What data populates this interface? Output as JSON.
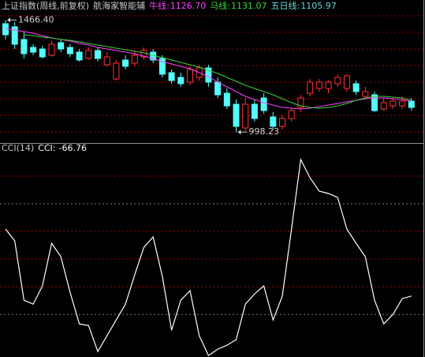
{
  "chart_data": [
    {
      "type": "candlestick",
      "title": "上证指数(周线,前复权)",
      "subtitle": "航海家智能辅",
      "open": [
        1451,
        1437.8,
        1385,
        1352,
        1345.4,
        1319,
        1371.8,
        1352,
        1332.2,
        1305.8,
        1338.8,
        1279.4,
        1220,
        1299.2,
        1286,
        1312.4,
        1332.2,
        1305.8,
        1246.4,
        1226.6,
        1206.8,
        1226.6,
        1266.2,
        1206.8,
        1160.6,
        1114.4,
        1015.4,
        1114.4,
        1140.8,
        1061.6,
        1022,
        1055,
        1101.2,
        1160.6,
        1180.4,
        1180.4,
        1200.2,
        1180.4,
        1200.2,
        1147.4,
        1154,
        1094.6,
        1107.8,
        1107.8,
        1127.6
      ],
      "high": [
        1466.4,
        1457.6,
        1418,
        1365.2,
        1358.6,
        1378.4,
        1385,
        1365.2,
        1345.4,
        1352,
        1352,
        1332.2,
        1299.2,
        1319,
        1338.8,
        1352,
        1345.4,
        1319,
        1259.6,
        1246.4,
        1272.8,
        1279.4,
        1279.4,
        1226.6,
        1180.4,
        1134.2,
        1140.8,
        1134.2,
        1160.6,
        1081.4,
        1068.2,
        1101.2,
        1154,
        1220,
        1220,
        1213.4,
        1239.8,
        1239.8,
        1213.4,
        1187,
        1167.2,
        1140.8,
        1140.8,
        1147.4,
        1140.8
      ],
      "low": [
        1385,
        1345.4,
        1305.8,
        1319,
        1305.8,
        1312.4,
        1332.2,
        1312.4,
        1292.6,
        1299.2,
        1292.6,
        1272.8,
        1213.4,
        1259.6,
        1272.8,
        1299.2,
        1286,
        1226.6,
        1200.2,
        1187,
        1193.6,
        1213.4,
        1187,
        1140.8,
        1094.6,
        998.23,
        1002.2,
        1041.8,
        1074.8,
        1008.8,
        1008.8,
        1041.8,
        1081.4,
        1147.4,
        1167.2,
        1160.6,
        1187,
        1167.2,
        1154,
        1134.2,
        1081.4,
        1088,
        1094.6,
        1094.6,
        1088
      ],
      "close": [
        1404.8,
        1365.2,
        1325.6,
        1332.2,
        1312.4,
        1365.2,
        1345.4,
        1325.6,
        1299.2,
        1338.8,
        1305.8,
        1312.4,
        1286,
        1272.8,
        1319,
        1338.8,
        1299.2,
        1239.8,
        1213.4,
        1200.2,
        1259.6,
        1266.2,
        1206.8,
        1154,
        1107.8,
        1022,
        1114.4,
        1055,
        1088,
        1022,
        1055,
        1088,
        1140.8,
        1206.8,
        1206.8,
        1206.8,
        1226.6,
        1233.2,
        1167.2,
        1167.2,
        1088,
        1121,
        1127.6,
        1127.6,
        1101.2
      ],
      "up_color": "#ff3232",
      "down_color": "#54fcfc",
      "series": [
        {
          "name": "牛线:",
          "color": "#ff40ff",
          "values": [
            1431.2,
            1424.6,
            1418,
            1411.4,
            1401.5,
            1391.6,
            1385,
            1378.4,
            1368.5,
            1361.9,
            1352,
            1345.4,
            1338.8,
            1332.2,
            1325.6,
            1315.7,
            1305.8,
            1292.6,
            1282.7,
            1272.8,
            1262.9,
            1246.4,
            1229.9,
            1206.8,
            1187,
            1167.2,
            1147.4,
            1134.2,
            1121,
            1111.1,
            1101.2,
            1097.9,
            1094.6,
            1097.9,
            1104.5,
            1111.1,
            1117.7,
            1124.3,
            1130.9,
            1137.5,
            1140.8,
            1140.8,
            1137.5,
            1134.2,
            1126.7
          ],
          "value_labels": [
            null,
            null,
            null,
            null,
            null,
            null,
            null,
            null,
            null,
            null,
            null,
            null,
            null,
            null,
            null,
            null,
            null,
            null,
            null,
            null,
            null,
            null,
            null,
            null,
            null,
            null,
            null,
            null,
            null,
            null,
            null,
            null,
            null,
            null,
            null,
            null,
            null,
            null,
            null,
            null,
            null,
            null,
            null,
            null,
            "1126.70"
          ]
        },
        {
          "name": "马线:",
          "color": "#3cd23c",
          "values": [
            null,
            null,
            1404.8,
            1401.5,
            1394.9,
            1391.6,
            1385,
            1381.7,
            1375.1,
            1368.5,
            1361.9,
            1355.3,
            1348.7,
            1342.1,
            1335.5,
            1328.9,
            1319,
            1309.1,
            1299.2,
            1289.3,
            1279.4,
            1269.5,
            1256.3,
            1243.1,
            1226.6,
            1210.1,
            1193.6,
            1180.4,
            1167.2,
            1154,
            1137.5,
            1121,
            1107.8,
            1101.2,
            1097.9,
            1101.2,
            1107.8,
            1117.7,
            1130.9,
            1140.8,
            1147.4,
            1147.4,
            1144.1,
            1140.8,
            1131.07
          ],
          "value_labels": [
            null,
            null,
            null,
            null,
            null,
            null,
            null,
            null,
            null,
            null,
            null,
            null,
            null,
            null,
            null,
            null,
            null,
            null,
            null,
            null,
            null,
            null,
            null,
            null,
            null,
            null,
            null,
            null,
            null,
            null,
            null,
            null,
            null,
            null,
            null,
            null,
            null,
            null,
            null,
            null,
            null,
            null,
            null,
            null,
            "1131.07"
          ]
        }
      ],
      "indicator_values": [
        {
          "name": "五日线:",
          "value": 1105.97,
          "label": "1105.97",
          "color": "#6ad5d5"
        }
      ],
      "annotations": [
        {
          "label": "1466.40",
          "value": 1466.4
        },
        {
          "label": "998.23",
          "value": 998.23
        }
      ],
      "ylim": [
        956,
        1550
      ],
      "yticks": [
        1484,
        1415,
        1345,
        1276,
        1207,
        1137,
        1068,
        999
      ],
      "grid": true,
      "grid_color": "#a00000"
    },
    {
      "type": "line",
      "title": "CCI(14)",
      "series": [
        {
          "name": "CCI:",
          "color": "#ffffff",
          "values": [
            54.3,
            32.9,
            -74.3,
            -81.4,
            -48.6,
            28.6,
            4.3,
            -60,
            -117.1,
            -120,
            -167.1,
            -138.6,
            -110,
            -81.4,
            -28.6,
            21.4,
            40,
            -31.4,
            -128.6,
            -74.3,
            -57.1,
            -138.6,
            -174.3,
            -162.9,
            -155.7,
            -145.7,
            -81.4,
            -62.9,
            -48.6,
            -110,
            -67.1,
            54.3,
            180,
            147.1,
            122.9,
            118.6,
            111.4,
            54.3,
            28.6,
            4.3,
            -74.3,
            -117.1,
            -100,
            -71.4,
            -66.76
          ]
        }
      ],
      "ylim": [
        -177,
        190
      ],
      "yticks": [
        150,
        100,
        50,
        0,
        -50,
        -100
      ],
      "grid": true,
      "grid_colors": [
        "#a00000",
        "#808080",
        "#a00000",
        "#a00000",
        "#a00000",
        "#808080"
      ]
    }
  ]
}
